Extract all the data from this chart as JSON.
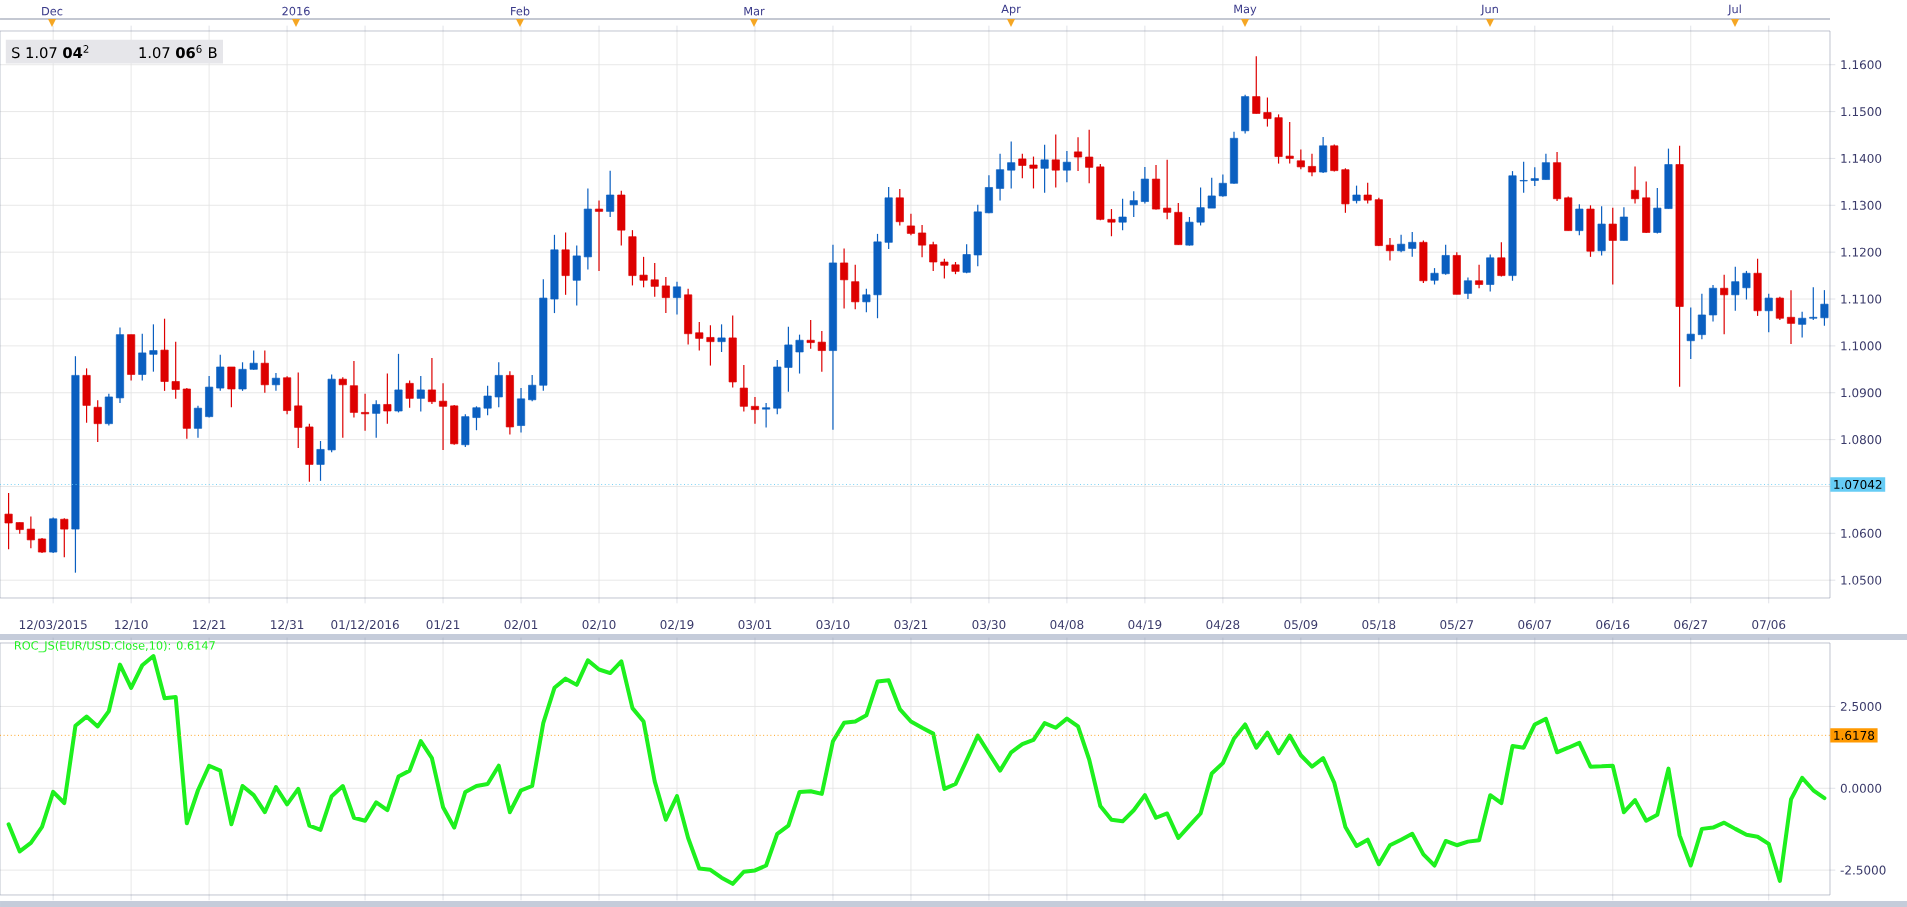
{
  "chart_data": [
    {
      "type": "candlestick",
      "categories": [
        null,
        null,
        null,
        null,
        "12/03/2015",
        null,
        null,
        null,
        null,
        null,
        null,
        "12/10",
        null,
        null,
        null,
        null,
        null,
        null,
        "12/21",
        null,
        null,
        null,
        null,
        null,
        null,
        "12/31",
        null,
        null,
        null,
        null,
        null,
        null,
        "01/12/2016",
        null,
        null,
        null,
        null,
        null,
        null,
        "01/21",
        null,
        null,
        null,
        null,
        null,
        null,
        "02/01",
        null,
        null,
        null,
        null,
        null,
        null,
        "02/10",
        null,
        null,
        null,
        null,
        null,
        null,
        "02/19",
        null,
        null,
        null,
        null,
        null,
        null,
        "03/01",
        null,
        null,
        null,
        null,
        null,
        null,
        "03/10",
        null,
        null,
        null,
        null,
        null,
        null,
        "03/21",
        null,
        null,
        null,
        null,
        null,
        null,
        "03/30",
        null,
        null,
        null,
        null,
        null,
        null,
        "04/08",
        null,
        null,
        null,
        null,
        null,
        null,
        "04/19",
        null,
        null,
        null,
        null,
        null,
        null,
        "04/28",
        null,
        null,
        null,
        null,
        null,
        null,
        "05/09",
        null,
        null,
        null,
        null,
        null,
        null,
        "05/18",
        null,
        null,
        null,
        null,
        null,
        null,
        "05/27",
        null,
        null,
        null,
        null,
        null,
        null,
        "06/07",
        null,
        null,
        null,
        null,
        null,
        null,
        "06/16",
        null,
        null,
        null,
        null,
        null,
        null,
        "06/27",
        null,
        null,
        null,
        null,
        null,
        null,
        "07/06",
        null,
        null,
        null,
        null,
        null
      ],
      "ohlc": [
        [
          1.0641,
          1.0686,
          1.0566,
          1.0622
        ],
        [
          1.0623,
          1.0623,
          1.0599,
          1.0608
        ],
        [
          1.0609,
          1.0636,
          1.0568,
          1.0586
        ],
        [
          1.0588,
          1.059,
          1.0558,
          1.056
        ],
        [
          1.056,
          1.0634,
          1.0558,
          1.0631
        ],
        [
          1.063,
          1.0632,
          1.0549,
          1.0609
        ],
        [
          1.0609,
          1.0978,
          1.0516,
          1.0937
        ],
        [
          1.0937,
          1.0952,
          1.0836,
          1.0873
        ],
        [
          1.0869,
          1.0884,
          1.0795,
          1.0834
        ],
        [
          1.0834,
          1.0898,
          1.083,
          1.0891
        ],
        [
          1.0889,
          1.1039,
          1.0878,
          1.1024
        ],
        [
          1.1024,
          1.1024,
          1.0926,
          1.0939
        ],
        [
          1.0939,
          1.1026,
          1.0926,
          1.0985
        ],
        [
          1.0982,
          1.1046,
          1.0945,
          1.099
        ],
        [
          1.0991,
          1.1058,
          1.0904,
          1.0924
        ],
        [
          1.0924,
          1.1009,
          1.0887,
          1.0907
        ],
        [
          1.0908,
          1.091,
          1.0802,
          1.0824
        ],
        [
          1.0824,
          1.0872,
          1.0804,
          1.0867
        ],
        [
          1.0849,
          1.0936,
          1.0847,
          1.0912
        ],
        [
          1.091,
          1.0981,
          1.0904,
          1.0955
        ],
        [
          1.0955,
          1.0955,
          1.0869,
          1.0908
        ],
        [
          1.0908,
          1.0965,
          1.0904,
          1.095
        ],
        [
          1.095,
          1.099,
          1.0949,
          1.0963
        ],
        [
          1.0963,
          1.099,
          1.09,
          1.0917
        ],
        [
          1.0917,
          1.0942,
          1.0904,
          1.0931
        ],
        [
          1.0932,
          1.0935,
          1.0854,
          1.0862
        ],
        [
          1.0872,
          1.0943,
          1.0782,
          1.0826
        ],
        [
          1.0827,
          1.0834,
          1.071,
          1.0747
        ],
        [
          1.0747,
          1.0797,
          1.0712,
          1.0779
        ],
        [
          1.0778,
          1.0939,
          1.0773,
          1.0929
        ],
        [
          1.0929,
          1.0933,
          1.0804,
          1.0917
        ],
        [
          1.0915,
          1.0968,
          1.0847,
          1.0858
        ],
        [
          1.0858,
          1.0898,
          1.0819,
          1.0855
        ],
        [
          1.0856,
          1.0884,
          1.0804,
          1.0875
        ],
        [
          1.0875,
          1.0941,
          1.0834,
          1.0861
        ],
        [
          1.0861,
          1.0983,
          1.0858,
          1.0906
        ],
        [
          1.092,
          1.0926,
          1.0868,
          1.0888
        ],
        [
          1.0888,
          1.0936,
          1.086,
          1.0906
        ],
        [
          1.0906,
          1.0974,
          1.0876,
          1.0881
        ],
        [
          1.0882,
          1.092,
          1.0778,
          1.0871
        ],
        [
          1.0872,
          1.0874,
          1.0789,
          1.0791
        ],
        [
          1.0789,
          1.0854,
          1.0784,
          1.0849
        ],
        [
          1.0847,
          1.0871,
          1.082,
          1.0868
        ],
        [
          1.0867,
          1.0915,
          1.0852,
          1.0893
        ],
        [
          1.0891,
          1.0965,
          1.0869,
          1.0937
        ],
        [
          1.0937,
          1.0946,
          1.0811,
          1.0827
        ],
        [
          1.083,
          1.091,
          1.0815,
          1.0887
        ],
        [
          1.0885,
          1.0938,
          1.0882,
          1.0916
        ],
        [
          1.0916,
          1.1142,
          1.0904,
          1.1102
        ],
        [
          1.11,
          1.1237,
          1.107,
          1.1205
        ],
        [
          1.1205,
          1.1242,
          1.1109,
          1.115
        ],
        [
          1.114,
          1.1214,
          1.1086,
          1.1192
        ],
        [
          1.119,
          1.1336,
          1.1163,
          1.1292
        ],
        [
          1.1292,
          1.131,
          1.116,
          1.1287
        ],
        [
          1.1287,
          1.1374,
          1.1275,
          1.1322
        ],
        [
          1.1322,
          1.1331,
          1.1214,
          1.1247
        ],
        [
          1.1233,
          1.1247,
          1.1129,
          1.115
        ],
        [
          1.1151,
          1.119,
          1.1125,
          1.114
        ],
        [
          1.1141,
          1.1177,
          1.1105,
          1.1127
        ],
        [
          1.1128,
          1.1147,
          1.107,
          1.1103
        ],
        [
          1.1103,
          1.1137,
          1.1067,
          1.1126
        ],
        [
          1.1109,
          1.1122,
          1.1003,
          1.1026
        ],
        [
          1.1028,
          1.1051,
          1.099,
          1.1016
        ],
        [
          1.1018,
          1.1044,
          1.0958,
          1.1009
        ],
        [
          1.1009,
          1.1046,
          1.0987,
          1.1017
        ],
        [
          1.1017,
          1.1065,
          1.0911,
          1.0923
        ],
        [
          1.091,
          1.0959,
          1.086,
          1.0871
        ],
        [
          1.0871,
          1.0891,
          1.0834,
          1.0864
        ],
        [
          1.0865,
          1.0878,
          1.0826,
          1.0868
        ],
        [
          1.0867,
          1.097,
          1.0854,
          1.0955
        ],
        [
          1.0954,
          1.1041,
          1.0902,
          1.1002
        ],
        [
          1.0987,
          1.1024,
          1.0941,
          1.1012
        ],
        [
          1.1012,
          1.1055,
          1.0994,
          1.1007
        ],
        [
          1.1008,
          1.1032,
          1.0945,
          1.099
        ],
        [
          1.099,
          1.1216,
          1.0821,
          1.1177
        ],
        [
          1.1177,
          1.1208,
          1.108,
          1.1141
        ],
        [
          1.1137,
          1.1173,
          1.1078,
          1.1094
        ],
        [
          1.1094,
          1.1122,
          1.1072,
          1.1109
        ],
        [
          1.1109,
          1.1239,
          1.1059,
          1.1222
        ],
        [
          1.1221,
          1.1339,
          1.1207,
          1.1316
        ],
        [
          1.1316,
          1.1335,
          1.1257,
          1.1265
        ],
        [
          1.1256,
          1.1282,
          1.1236,
          1.124
        ],
        [
          1.1241,
          1.1258,
          1.1189,
          1.1215
        ],
        [
          1.1216,
          1.1222,
          1.116,
          1.1179
        ],
        [
          1.1179,
          1.1186,
          1.1144,
          1.1172
        ],
        [
          1.1173,
          1.1179,
          1.1153,
          1.1159
        ],
        [
          1.1157,
          1.1217,
          1.1155,
          1.1195
        ],
        [
          1.1194,
          1.1301,
          1.117,
          1.1286
        ],
        [
          1.1284,
          1.1364,
          1.1283,
          1.1338
        ],
        [
          1.1336,
          1.141,
          1.131,
          1.1376
        ],
        [
          1.1375,
          1.1436,
          1.1336,
          1.1391
        ],
        [
          1.1399,
          1.141,
          1.1358,
          1.1385
        ],
        [
          1.1386,
          1.1404,
          1.1336,
          1.1379
        ],
        [
          1.1379,
          1.1429,
          1.1327,
          1.1397
        ],
        [
          1.1397,
          1.1451,
          1.1338,
          1.1375
        ],
        [
          1.1375,
          1.1416,
          1.1349,
          1.1392
        ],
        [
          1.1414,
          1.1445,
          1.1373,
          1.1403
        ],
        [
          1.1403,
          1.1461,
          1.1347,
          1.1381
        ],
        [
          1.1382,
          1.1388,
          1.1268,
          1.127
        ],
        [
          1.127,
          1.1292,
          1.1234,
          1.1264
        ],
        [
          1.1264,
          1.1314,
          1.1247,
          1.1275
        ],
        [
          1.1301,
          1.133,
          1.1275,
          1.131
        ],
        [
          1.1308,
          1.1382,
          1.1304,
          1.1356
        ],
        [
          1.1356,
          1.1386,
          1.1291,
          1.1292
        ],
        [
          1.1294,
          1.1397,
          1.127,
          1.1285
        ],
        [
          1.1285,
          1.1305,
          1.1216,
          1.1216
        ],
        [
          1.1215,
          1.1275,
          1.1214,
          1.1264
        ],
        [
          1.1264,
          1.1338,
          1.1257,
          1.1295
        ],
        [
          1.1294,
          1.1359,
          1.1294,
          1.132
        ],
        [
          1.132,
          1.1366,
          1.1318,
          1.1347
        ],
        [
          1.1347,
          1.1457,
          1.1346,
          1.1443
        ],
        [
          1.1459,
          1.1536,
          1.1453,
          1.1532
        ],
        [
          1.1532,
          1.1618,
          1.1496,
          1.1496
        ],
        [
          1.1498,
          1.153,
          1.1468,
          1.1485
        ],
        [
          1.1487,
          1.1494,
          1.1389,
          1.1404
        ],
        [
          1.1405,
          1.1478,
          1.1389,
          1.14
        ],
        [
          1.1395,
          1.1419,
          1.1377,
          1.1382
        ],
        [
          1.1383,
          1.141,
          1.1362,
          1.1371
        ],
        [
          1.1371,
          1.1446,
          1.1369,
          1.1427
        ],
        [
          1.1427,
          1.143,
          1.1372,
          1.1374
        ],
        [
          1.1376,
          1.1379,
          1.1284,
          1.1303
        ],
        [
          1.131,
          1.1342,
          1.1304,
          1.1322
        ],
        [
          1.1322,
          1.1348,
          1.1304,
          1.1311
        ],
        [
          1.1312,
          1.1316,
          1.1213,
          1.1214
        ],
        [
          1.1215,
          1.123,
          1.1182,
          1.1203
        ],
        [
          1.1203,
          1.1237,
          1.12,
          1.1217
        ],
        [
          1.1208,
          1.1243,
          1.119,
          1.1221
        ],
        [
          1.1221,
          1.1225,
          1.1134,
          1.1139
        ],
        [
          1.114,
          1.1166,
          1.1131,
          1.1155
        ],
        [
          1.1154,
          1.1216,
          1.1152,
          1.1193
        ],
        [
          1.1193,
          1.12,
          1.111,
          1.111
        ],
        [
          1.1112,
          1.1146,
          1.11,
          1.1139
        ],
        [
          1.1139,
          1.1173,
          1.1123,
          1.1131
        ],
        [
          1.1131,
          1.1195,
          1.1116,
          1.1188
        ],
        [
          1.1188,
          1.1221,
          1.1148,
          1.115
        ],
        [
          1.115,
          1.1373,
          1.1139,
          1.1363
        ],
        [
          1.1352,
          1.1393,
          1.1327,
          1.1353
        ],
        [
          1.1353,
          1.1381,
          1.1341,
          1.1357
        ],
        [
          1.1355,
          1.141,
          1.1355,
          1.1391
        ],
        [
          1.1391,
          1.1414,
          1.1309,
          1.1314
        ],
        [
          1.1316,
          1.1319,
          1.1246,
          1.1246
        ],
        [
          1.1246,
          1.1302,
          1.1236,
          1.1292
        ],
        [
          1.1292,
          1.13,
          1.119,
          1.1202
        ],
        [
          1.1203,
          1.1298,
          1.1193,
          1.126
        ],
        [
          1.126,
          1.1295,
          1.1131,
          1.1225
        ],
        [
          1.1225,
          1.1296,
          1.1225,
          1.1275
        ],
        [
          1.1332,
          1.1383,
          1.1304,
          1.1314
        ],
        [
          1.1316,
          1.1351,
          1.1241,
          1.1242
        ],
        [
          1.1242,
          1.1337,
          1.124,
          1.1294
        ],
        [
          1.1293,
          1.1421,
          1.1293,
          1.1387
        ],
        [
          1.1387,
          1.1427,
          1.0913,
          1.1084
        ],
        [
          1.1011,
          1.1082,
          1.0972,
          1.1025
        ],
        [
          1.1024,
          1.1111,
          1.1014,
          1.1066
        ],
        [
          1.1066,
          1.113,
          1.1052,
          1.1123
        ],
        [
          1.1123,
          1.1152,
          1.1025,
          1.1109
        ],
        [
          1.1109,
          1.1169,
          1.1075,
          1.1137
        ],
        [
          1.1124,
          1.116,
          1.1099,
          1.1155
        ],
        [
          1.1155,
          1.1186,
          1.1064,
          1.1075
        ],
        [
          1.1075,
          1.1111,
          1.1029,
          1.1102
        ],
        [
          1.1102,
          1.1105,
          1.1055,
          1.1059
        ],
        [
          1.1061,
          1.1119,
          1.1004,
          1.1048
        ],
        [
          1.1046,
          1.1073,
          1.1018,
          1.1059
        ],
        [
          1.1059,
          1.1125,
          1.1055,
          1.1061
        ],
        [
          1.106,
          1.1119,
          1.1043,
          1.1089
        ]
      ],
      "colors": [
        "#dd0000",
        "#dd0000",
        "#dd0000",
        "#dd0000",
        "#0a5fc0",
        "#dd0000",
        "#0a5fc0",
        "#dd0000",
        "#dd0000",
        "#0a5fc0",
        "#0a5fc0",
        "#dd0000",
        "#0a5fc0",
        "#0a5fc0",
        "#dd0000",
        "#dd0000",
        "#dd0000",
        "#0a5fc0",
        "#0a5fc0",
        "#0a5fc0",
        "#dd0000",
        "#0a5fc0",
        "#0a5fc0",
        "#dd0000",
        "#0a5fc0",
        "#dd0000",
        "#dd0000",
        "#dd0000",
        "#0a5fc0",
        "#0a5fc0",
        "#dd0000",
        "#dd0000",
        "#dd0000",
        "#0a5fc0",
        "#dd0000",
        "#0a5fc0",
        "#dd0000",
        "#0a5fc0",
        "#dd0000",
        "#dd0000",
        "#dd0000",
        "#0a5fc0",
        "#0a5fc0",
        "#0a5fc0",
        "#0a5fc0",
        "#dd0000",
        "#0a5fc0",
        "#0a5fc0",
        "#0a5fc0",
        "#0a5fc0",
        "#dd0000",
        "#0a5fc0",
        "#0a5fc0",
        "#dd0000",
        "#0a5fc0",
        "#dd0000",
        "#dd0000",
        "#dd0000",
        "#dd0000",
        "#dd0000",
        "#0a5fc0",
        "#dd0000",
        "#dd0000",
        "#dd0000",
        "#0a5fc0",
        "#dd0000",
        "#dd0000",
        "#dd0000",
        "#0a5fc0",
        "#0a5fc0",
        "#0a5fc0",
        "#0a5fc0",
        "#dd0000",
        "#dd0000",
        "#0a5fc0",
        "#dd0000",
        "#dd0000",
        "#0a5fc0",
        "#0a5fc0",
        "#0a5fc0",
        "#dd0000",
        "#dd0000",
        "#dd0000",
        "#dd0000",
        "#dd0000",
        "#dd0000",
        "#0a5fc0",
        "#0a5fc0",
        "#0a5fc0",
        "#0a5fc0",
        "#0a5fc0",
        "#dd0000",
        "#dd0000",
        "#0a5fc0",
        "#dd0000",
        "#0a5fc0",
        "#dd0000",
        "#dd0000",
        "#dd0000",
        "#dd0000",
        "#0a5fc0",
        "#0a5fc0",
        "#0a5fc0",
        "#dd0000",
        "#dd0000",
        "#dd0000",
        "#0a5fc0",
        "#0a5fc0",
        "#0a5fc0",
        "#0a5fc0",
        "#0a5fc0",
        "#0a5fc0",
        "#dd0000",
        "#dd0000",
        "#dd0000",
        "#dd0000",
        "#dd0000",
        "#dd0000",
        "#0a5fc0",
        "#dd0000",
        "#dd0000",
        "#0a5fc0",
        "#dd0000",
        "#dd0000",
        "#dd0000",
        "#0a5fc0",
        "#0a5fc0",
        "#dd0000",
        "#0a5fc0",
        "#0a5fc0",
        "#dd0000",
        "#0a5fc0",
        "#dd0000",
        "#0a5fc0",
        "#dd0000",
        "#0a5fc0",
        "#0a5fc0",
        "#0a5fc0",
        "#0a5fc0",
        "#dd0000",
        "#dd0000",
        "#0a5fc0",
        "#dd0000",
        "#0a5fc0",
        "#dd0000",
        "#0a5fc0",
        "#dd0000",
        "#dd0000",
        "#0a5fc0",
        "#0a5fc0",
        "#dd0000",
        "#0a5fc0",
        "#0a5fc0",
        "#0a5fc0",
        "#dd0000",
        "#0a5fc0",
        "#0a5fc0",
        "#dd0000",
        "#0a5fc0",
        "#dd0000",
        "#dd0000",
        "#0a5fc0",
        "#0a5fc0",
        "#0a5fc0"
      ],
      "ylim": [
        1.0462,
        1.1672
      ],
      "yticks": [
        {
          "value": 1.05,
          "label": "1.0500"
        },
        {
          "value": 1.06,
          "label": "1.0600"
        },
        {
          "value": 1.07,
          "label": null
        },
        {
          "value": 1.08,
          "label": "1.0800"
        },
        {
          "value": 1.09,
          "label": "1.0900"
        },
        {
          "value": 1.1,
          "label": "1.1000"
        },
        {
          "value": 1.11,
          "label": "1.1100"
        },
        {
          "value": 1.12,
          "label": "1.1200"
        },
        {
          "value": 1.13,
          "label": "1.1300"
        },
        {
          "value": 1.14,
          "label": "1.1400"
        },
        {
          "value": 1.15,
          "label": "1.1500"
        },
        {
          "value": 1.16,
          "label": "1.1600"
        }
      ],
      "grid": true,
      "ref_lines": [
        {
          "axis": "y",
          "value": 1.07042,
          "label": "1.07042",
          "color": "#66ccf5",
          "line_style": "dotted"
        }
      ],
      "annotations": [
        "S 1.07 **04**$^{2}$",
        "1.07 **06**$^{6}$ B",
        "Dec",
        "2016",
        "Feb",
        "Mar",
        "Apr",
        "May",
        "Jun",
        "Jul"
      ]
    },
    {
      "type": "line",
      "title": "ROC_JS(EUR/USD.Close,10): 0.6147",
      "categories": [
        null,
        null,
        null,
        null,
        null,
        null,
        null,
        null,
        null,
        null,
        null,
        null,
        null,
        null,
        null,
        null,
        null,
        null,
        null,
        null,
        null,
        null,
        null,
        null,
        null,
        null,
        null,
        null,
        null,
        null,
        null,
        null,
        null,
        null,
        null,
        null,
        null,
        null,
        null,
        null,
        null,
        null,
        null,
        null,
        null,
        null,
        null,
        null,
        null,
        null,
        null,
        null,
        null,
        null,
        null,
        null,
        null,
        null,
        null,
        null,
        null,
        null,
        null,
        null,
        null,
        null,
        null,
        null,
        null,
        null,
        null,
        null,
        null,
        null,
        null,
        null,
        null,
        null,
        null,
        null,
        null,
        null,
        null,
        null,
        null,
        null,
        null,
        null,
        null,
        null,
        null,
        null,
        null,
        null,
        null,
        null,
        null,
        null,
        null,
        null,
        null,
        null,
        null,
        null,
        null,
        null,
        null,
        null,
        null,
        null,
        null,
        null,
        null,
        null,
        null,
        null,
        null,
        null,
        null,
        null,
        null,
        null,
        null,
        null,
        null,
        null,
        null,
        null,
        null,
        null,
        null,
        null,
        null,
        null,
        null,
        null,
        null,
        null,
        null,
        null,
        null,
        null,
        null,
        null,
        null,
        null,
        null,
        null,
        null,
        null,
        null,
        null,
        null,
        null,
        null,
        null,
        null,
        null,
        null,
        null,
        null,
        null,
        null,
        null
      ],
      "values": [
        -1.1,
        -1.93,
        -1.67,
        -1.18,
        -0.11,
        -0.45,
        1.91,
        2.19,
        1.89,
        2.36,
        3.78,
        3.07,
        3.76,
        4.04,
        2.75,
        2.79,
        -1.07,
        -0.06,
        0.69,
        0.54,
        -1.1,
        0.07,
        -0.21,
        -0.73,
        0.04,
        -0.49,
        -0.02,
        -1.14,
        -1.27,
        -0.24,
        0.07,
        -0.9,
        -0.99,
        -0.43,
        -0.67,
        0.36,
        0.54,
        1.44,
        0.92,
        -0.58,
        -1.2,
        -0.11,
        0.07,
        0.13,
        0.69,
        -0.73,
        -0.06,
        0.07,
        2.0,
        3.07,
        3.35,
        3.16,
        3.91,
        3.63,
        3.52,
        3.88,
        2.45,
        2.04,
        0.21,
        -0.96,
        -0.24,
        -1.52,
        -2.45,
        -2.49,
        -2.73,
        -2.92,
        -2.55,
        -2.51,
        -2.36,
        -1.39,
        -1.14,
        -0.11,
        -0.09,
        -0.17,
        1.44,
        2.0,
        2.04,
        2.23,
        3.26,
        3.3,
        2.42,
        2.04,
        1.85,
        1.67,
        -0.02,
        0.13,
        0.86,
        1.61,
        1.07,
        0.54,
        1.1,
        1.35,
        1.48,
        1.99,
        1.85,
        2.13,
        1.89,
        0.88,
        -0.54,
        -0.96,
        -1.01,
        -0.67,
        -0.21,
        -0.9,
        -0.77,
        -1.52,
        -1.14,
        -0.77,
        0.45,
        0.77,
        1.52,
        1.95,
        1.24,
        1.7,
        1.07,
        1.61,
        1.01,
        0.66,
        0.92,
        0.17,
        -1.18,
        -1.76,
        -1.57,
        -2.32,
        -1.74,
        -1.57,
        -1.39,
        -2.02,
        -2.36,
        -1.61,
        -1.74,
        -1.63,
        -1.59,
        -0.21,
        -0.45,
        1.29,
        1.24,
        1.95,
        2.12,
        1.1,
        1.24,
        1.39,
        0.66,
        0.67,
        0.69,
        -0.73,
        -0.36,
        -0.99,
        -0.81,
        0.6,
        -1.44,
        -2.36,
        -1.24,
        -1.2,
        -1.05,
        -1.24,
        -1.42,
        -1.48,
        -1.7,
        -2.83,
        -0.34,
        0.32,
        -0.06,
        -0.3
      ],
      "color": "#1ef01e",
      "line_style": "solid",
      "ylim": [
        -3.26,
        4.44
      ],
      "yticks": [
        {
          "value": -2.5,
          "label": "-2.5000"
        },
        {
          "value": 0,
          "label": "0.0000"
        },
        {
          "value": 2.5,
          "label": "2.5000"
        }
      ],
      "tick_labels": "y",
      "grid": true,
      "ref_lines": [
        {
          "axis": "y",
          "value": 1.6178,
          "label": "1.6178",
          "color": "#ff9900",
          "line_style": "dotted"
        }
      ]
    }
  ]
}
